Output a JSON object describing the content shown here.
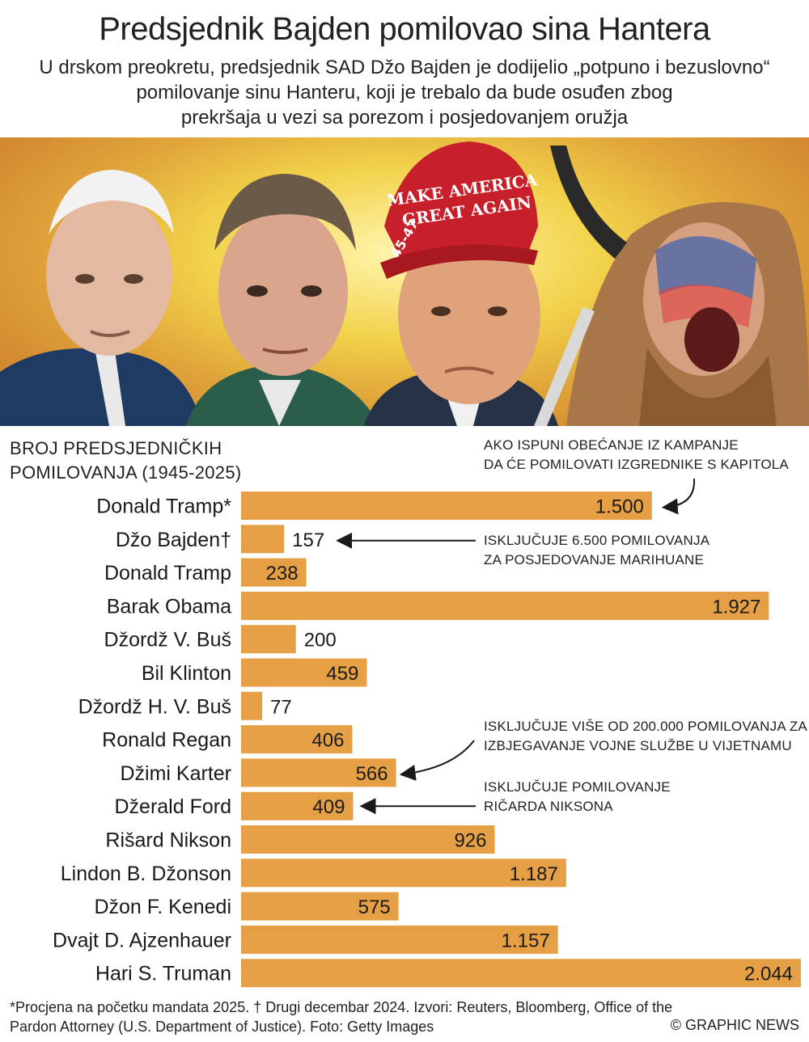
{
  "title": "Predsjednik Bajden pomilovao sina Hantera",
  "subtitle_lines": [
    "U drskom preokretu, predsjednik SAD Džo Bajden je dodijelio „potpuno i bezuslovno“",
    "pomilovanje sinu Hanteru, koji je trebalo da bude osuđen zbog",
    "prekršaja u vezi sa porezom i posjedovanjem oružja"
  ],
  "hat_text": [
    "MAKE AMERICA",
    "GREAT AGAIN",
    "45-47"
  ],
  "colors": {
    "bar": "#e5a046",
    "text": "#1a1a1a",
    "arrow": "#1a1a1a"
  },
  "chart_data": {
    "type": "bar",
    "orientation": "horizontal",
    "heading_lines": [
      "BROJ PREDSJEDNIČKIH",
      "POMILOVANJA (1945-2025)"
    ],
    "categories": [
      "Donald Tramp*",
      "Džo Bajden†",
      "Donald Tramp",
      "Barak Obama",
      "Džordž V. Buš",
      "Bil Klinton",
      "Džordž H. V. Buš",
      "Ronald Regan",
      "Džimi Karter",
      "Džerald Ford",
      "Rišard Nikson",
      "Lindon B. Džonson",
      "Džon F. Kenedi",
      "Dvajt D. Ajzenhauer",
      "Hari S. Truman"
    ],
    "values": [
      1500,
      157,
      238,
      1927,
      200,
      459,
      77,
      406,
      566,
      409,
      926,
      1187,
      575,
      1157,
      2044
    ],
    "value_labels": [
      "1.500",
      "157",
      "238",
      "1.927",
      "200",
      "459",
      "77",
      "406",
      "566",
      "409",
      "926",
      "1.187",
      "575",
      "1.157",
      "2.044"
    ],
    "xlim": [
      0,
      2044
    ],
    "annotations": [
      {
        "target": "Donald Tramp*",
        "lines": [
          "AKO ISPUNI OBEĆANJE IZ KAMPANJE",
          "DA ĆE POMILOVATI  IZGREDNIKE S KAPITOLA"
        ]
      },
      {
        "target": "Džo Bajden†",
        "lines": [
          "ISKLJUČUJE 6.500 POMILOVANJA",
          "ZA POSJEDOVANJE MARIHUANE"
        ]
      },
      {
        "target": "Džimi Karter",
        "lines": [
          "ISKLJUČUJE VIŠE OD 200.000 POMILOVANJA ZA",
          "IZBJEGAVANJE VOJNE SLUŽBE U VIJETNAMU"
        ]
      },
      {
        "target": "Džerald Ford",
        "lines": [
          "ISKLJUČUJE POMILOVANJE",
          "RIČARDA NIKSONA"
        ]
      }
    ]
  },
  "footer_lines": [
    "*Procjena na početku mandata 2025. † Drugi decembar 2024. Izvori: Reuters, Bloomberg, Office of the",
    "Pardon Attorney (U.S. Department of Justice). Foto: Getty Images"
  ],
  "credit": "© GRAPHIC NEWS"
}
